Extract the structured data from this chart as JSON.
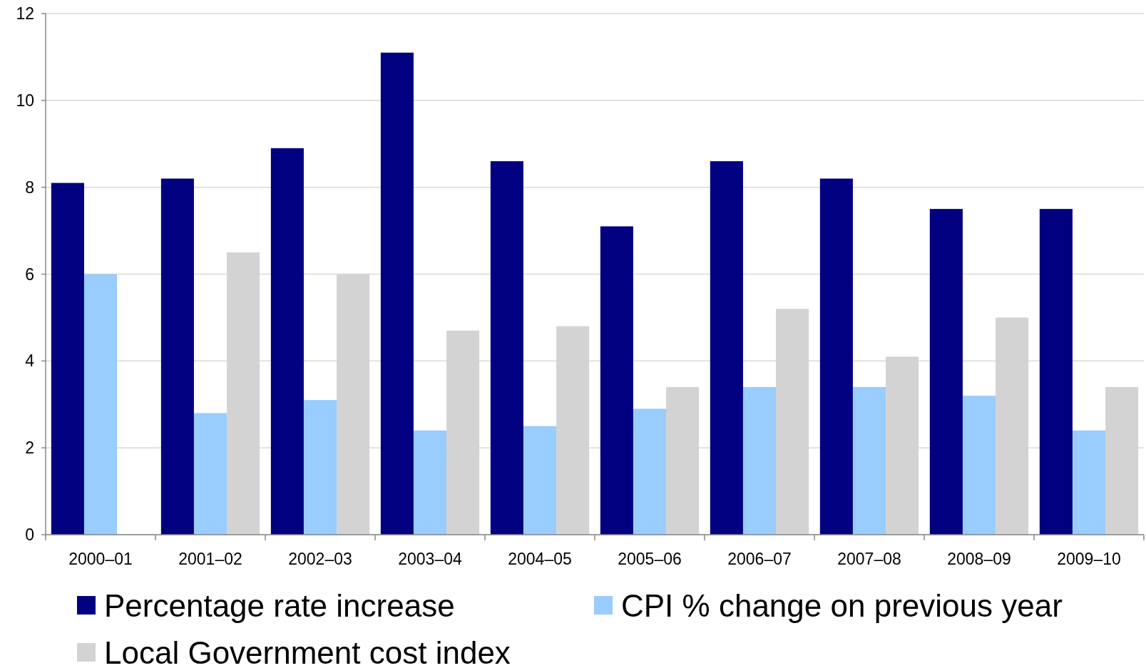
{
  "chart_data": {
    "type": "bar",
    "categories": [
      "2000–01",
      "2001–02",
      "2002–03",
      "2003–04",
      "2004–05",
      "2005–06",
      "2006–07",
      "2007–08",
      "2008–09",
      "2009–10"
    ],
    "series": [
      {
        "name": "Percentage rate increase",
        "color": "#000080",
        "values": [
          8.1,
          8.2,
          8.9,
          11.1,
          8.6,
          7.1,
          8.6,
          8.2,
          7.5,
          7.5
        ]
      },
      {
        "name": "CPI % change on previous year",
        "color": "#99ccff",
        "values": [
          6.0,
          2.8,
          3.1,
          2.4,
          2.5,
          2.9,
          3.4,
          3.4,
          3.2,
          2.4
        ]
      },
      {
        "name": "Local Government cost index",
        "color": "#d3d3d3",
        "values": [
          null,
          6.5,
          6.0,
          4.7,
          4.8,
          3.4,
          5.2,
          4.1,
          5.0,
          3.4
        ]
      }
    ],
    "ylim": [
      0,
      12
    ],
    "yticks": [
      0,
      2,
      4,
      6,
      8,
      10,
      12
    ],
    "grid": "y",
    "legend": "bottom"
  }
}
